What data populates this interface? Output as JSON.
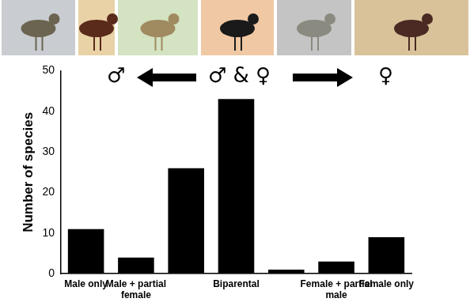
{
  "chart_data": {
    "type": "bar",
    "categories": [
      "Male only",
      "Male + partial female",
      null,
      "Biparental",
      null,
      "Female + partial male",
      "Female only"
    ],
    "values": [
      11,
      4,
      26,
      43,
      1,
      3,
      9
    ],
    "color": "#000000",
    "y_label": "Number of species",
    "ylim": [
      0,
      50
    ],
    "yticks": [
      0,
      10,
      20,
      30,
      40,
      50
    ],
    "grid": false,
    "annotations": [
      "♂",
      "♂ & ♀",
      "♀"
    ]
  }
}
